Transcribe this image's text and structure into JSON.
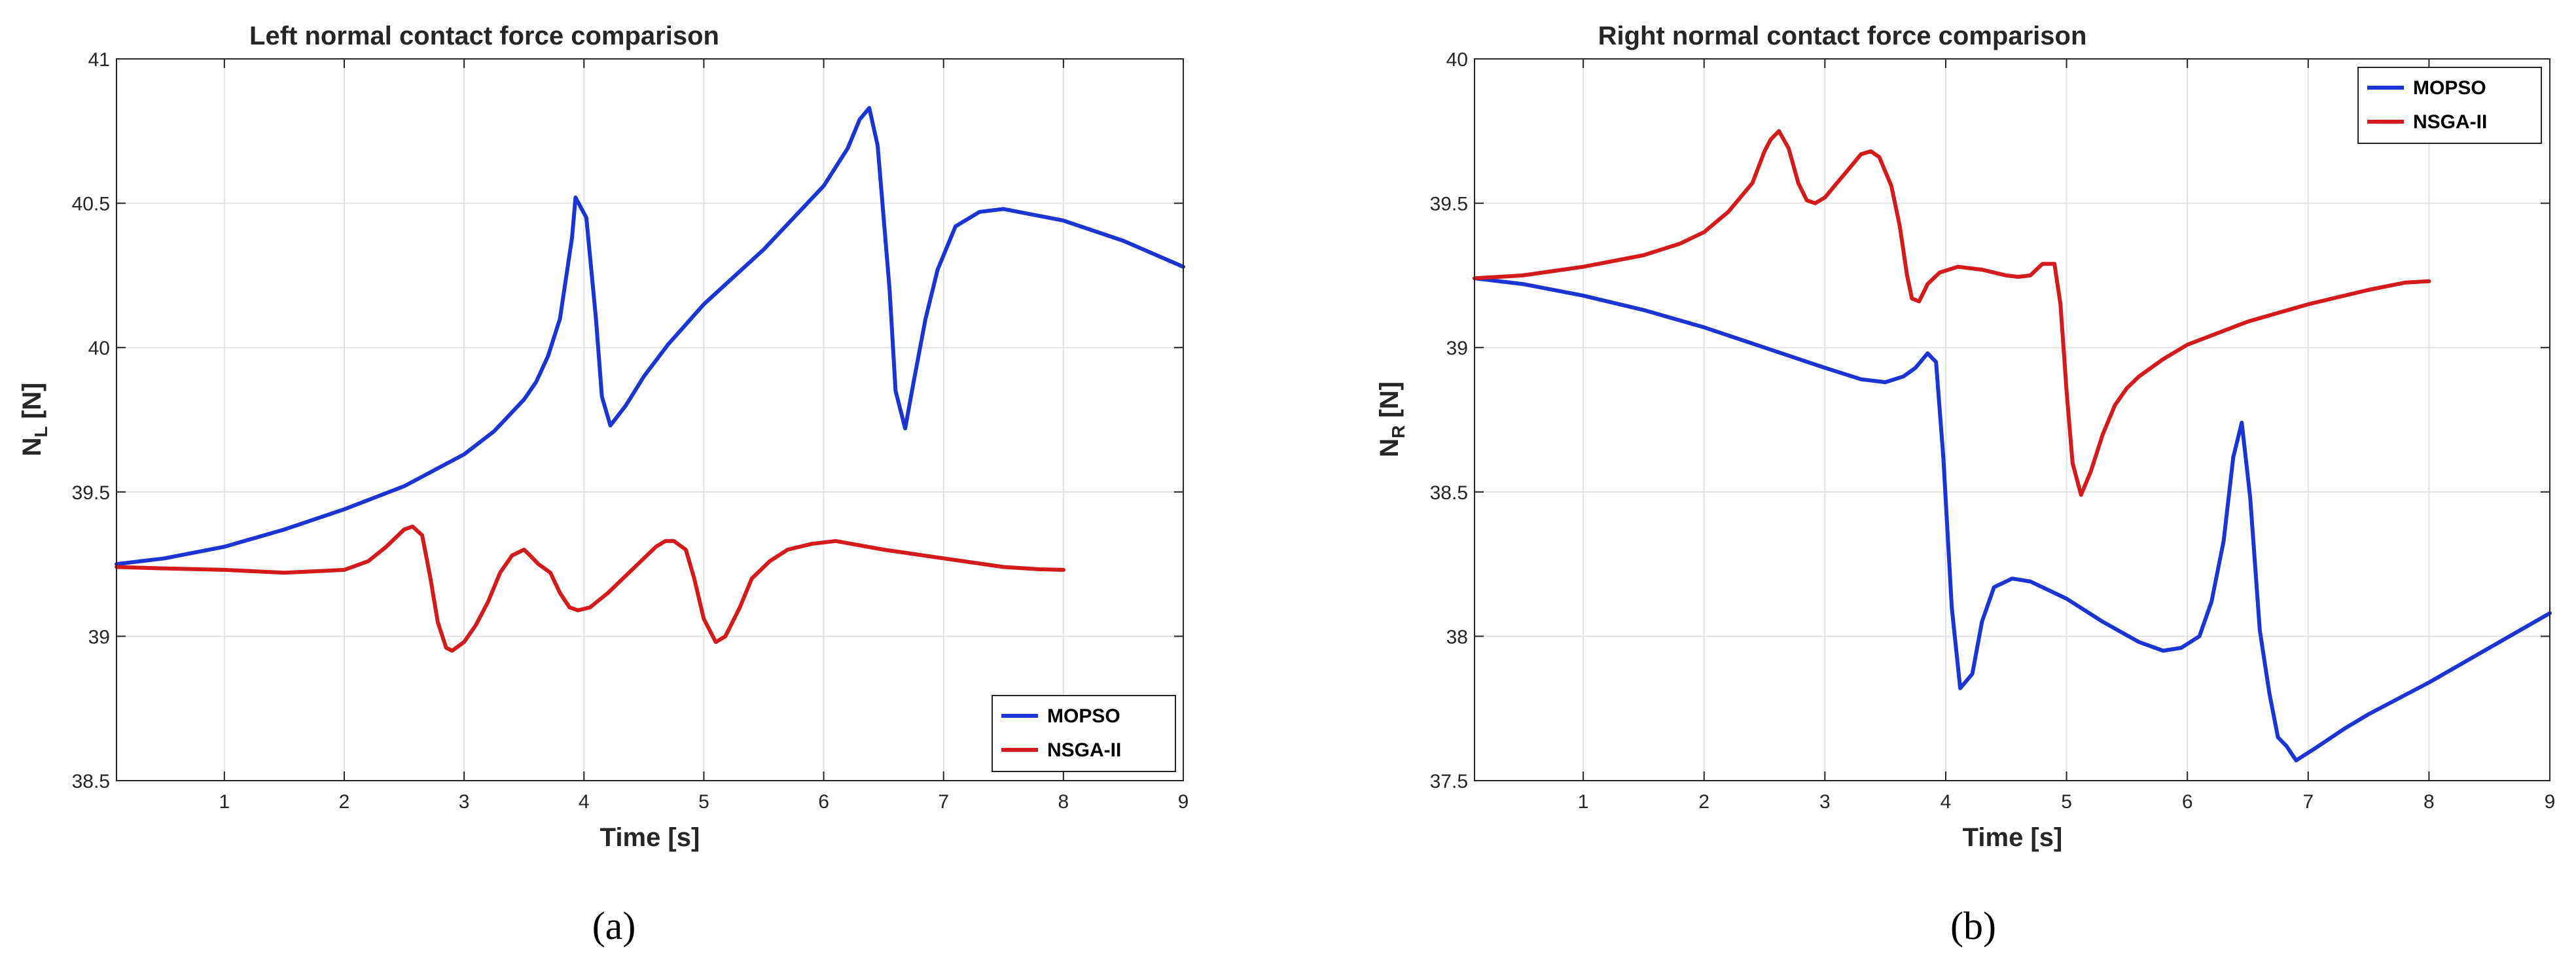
{
  "chart_data": [
    {
      "type": "line",
      "title": "Left normal contact force comparison",
      "xlabel": "Time [s]",
      "ylabel_main": "N",
      "ylabel_sub": "L",
      "ylabel_unit": "[N]",
      "xlim": [
        0.1,
        9
      ],
      "ylim": [
        38.5,
        41
      ],
      "xticks": [
        "1",
        "2",
        "3",
        "4",
        "5",
        "6",
        "7",
        "8",
        "9"
      ],
      "yticks": [
        "38.5",
        "39",
        "39.5",
        "40",
        "40.5",
        "41"
      ],
      "grid": true,
      "legend_position": "bottom-right",
      "caption": "(a)",
      "series": [
        {
          "name": "MOPSO",
          "color": "#1a35d4",
          "points": [
            [
              0.1,
              39.25
            ],
            [
              0.5,
              39.27
            ],
            [
              1.0,
              39.31
            ],
            [
              1.5,
              39.37
            ],
            [
              2.0,
              39.44
            ],
            [
              2.5,
              39.52
            ],
            [
              3.0,
              39.63
            ],
            [
              3.25,
              39.71
            ],
            [
              3.5,
              39.82
            ],
            [
              3.6,
              39.88
            ],
            [
              3.7,
              39.97
            ],
            [
              3.8,
              40.1
            ],
            [
              3.9,
              40.38
            ],
            [
              3.93,
              40.52
            ],
            [
              4.02,
              40.45
            ],
            [
              4.1,
              40.1
            ],
            [
              4.15,
              39.83
            ],
            [
              4.22,
              39.73
            ],
            [
              4.35,
              39.8
            ],
            [
              4.5,
              39.9
            ],
            [
              4.7,
              40.01
            ],
            [
              5.0,
              40.15
            ],
            [
              5.5,
              40.34
            ],
            [
              6.0,
              40.56
            ],
            [
              6.2,
              40.69
            ],
            [
              6.3,
              40.79
            ],
            [
              6.38,
              40.83
            ],
            [
              6.45,
              40.7
            ],
            [
              6.55,
              40.2
            ],
            [
              6.6,
              39.85
            ],
            [
              6.68,
              39.72
            ],
            [
              6.75,
              39.88
            ],
            [
              6.85,
              40.1
            ],
            [
              6.95,
              40.27
            ],
            [
              7.1,
              40.42
            ],
            [
              7.3,
              40.47
            ],
            [
              7.5,
              40.48
            ],
            [
              8.0,
              40.44
            ],
            [
              8.5,
              40.37
            ],
            [
              9.0,
              40.28
            ]
          ]
        },
        {
          "name": "NSGA-II",
          "color": "#d41a1a",
          "points": [
            [
              0.1,
              39.24
            ],
            [
              0.5,
              39.235
            ],
            [
              1.0,
              39.23
            ],
            [
              1.5,
              39.22
            ],
            [
              2.0,
              39.23
            ],
            [
              2.2,
              39.26
            ],
            [
              2.35,
              39.31
            ],
            [
              2.5,
              39.37
            ],
            [
              2.57,
              39.38
            ],
            [
              2.65,
              39.35
            ],
            [
              2.72,
              39.2
            ],
            [
              2.78,
              39.05
            ],
            [
              2.85,
              38.96
            ],
            [
              2.9,
              38.95
            ],
            [
              3.0,
              38.98
            ],
            [
              3.1,
              39.04
            ],
            [
              3.2,
              39.12
            ],
            [
              3.3,
              39.22
            ],
            [
              3.4,
              39.28
            ],
            [
              3.5,
              39.3
            ],
            [
              3.55,
              39.28
            ],
            [
              3.62,
              39.25
            ],
            [
              3.72,
              39.22
            ],
            [
              3.8,
              39.15
            ],
            [
              3.88,
              39.1
            ],
            [
              3.95,
              39.09
            ],
            [
              4.05,
              39.1
            ],
            [
              4.2,
              39.15
            ],
            [
              4.4,
              39.23
            ],
            [
              4.6,
              39.31
            ],
            [
              4.68,
              39.33
            ],
            [
              4.75,
              39.33
            ],
            [
              4.85,
              39.3
            ],
            [
              4.92,
              39.2
            ],
            [
              5.0,
              39.06
            ],
            [
              5.1,
              38.98
            ],
            [
              5.18,
              39.0
            ],
            [
              5.3,
              39.1
            ],
            [
              5.4,
              39.2
            ],
            [
              5.55,
              39.26
            ],
            [
              5.7,
              39.3
            ],
            [
              5.9,
              39.32
            ],
            [
              6.1,
              39.33
            ],
            [
              6.5,
              39.3
            ],
            [
              7.0,
              39.27
            ],
            [
              7.5,
              39.24
            ],
            [
              7.8,
              39.232
            ],
            [
              8.0,
              39.23
            ]
          ]
        }
      ]
    },
    {
      "type": "line",
      "title": "Right normal contact force comparison",
      "xlabel": "Time [s]",
      "ylabel_main": "N",
      "ylabel_sub": "R",
      "ylabel_unit": "[N]",
      "xlim": [
        0.1,
        9
      ],
      "ylim": [
        37.5,
        40
      ],
      "xticks": [
        "1",
        "2",
        "3",
        "4",
        "5",
        "6",
        "7",
        "8",
        "9"
      ],
      "yticks": [
        "37.5",
        "38",
        "38.5",
        "39",
        "39.5",
        "40"
      ],
      "grid": true,
      "legend_position": "top-right",
      "caption": "(b)",
      "series": [
        {
          "name": "MOPSO",
          "color": "#1a35d4",
          "points": [
            [
              0.1,
              39.24
            ],
            [
              0.5,
              39.22
            ],
            [
              1.0,
              39.18
            ],
            [
              1.5,
              39.13
            ],
            [
              2.0,
              39.07
            ],
            [
              2.5,
              39.0
            ],
            [
              3.0,
              38.93
            ],
            [
              3.3,
              38.89
            ],
            [
              3.5,
              38.88
            ],
            [
              3.65,
              38.9
            ],
            [
              3.75,
              38.93
            ],
            [
              3.85,
              38.98
            ],
            [
              3.92,
              38.95
            ],
            [
              3.98,
              38.62
            ],
            [
              4.05,
              38.1
            ],
            [
              4.12,
              37.82
            ],
            [
              4.22,
              37.87
            ],
            [
              4.3,
              38.05
            ],
            [
              4.4,
              38.17
            ],
            [
              4.55,
              38.2
            ],
            [
              4.7,
              38.19
            ],
            [
              5.0,
              38.13
            ],
            [
              5.3,
              38.05
            ],
            [
              5.6,
              37.98
            ],
            [
              5.8,
              37.95
            ],
            [
              5.95,
              37.96
            ],
            [
              6.1,
              38.0
            ],
            [
              6.2,
              38.12
            ],
            [
              6.3,
              38.33
            ],
            [
              6.38,
              38.62
            ],
            [
              6.45,
              38.74
            ],
            [
              6.52,
              38.48
            ],
            [
              6.6,
              38.02
            ],
            [
              6.68,
              37.8
            ],
            [
              6.75,
              37.65
            ],
            [
              6.82,
              37.62
            ],
            [
              6.9,
              37.57
            ],
            [
              7.05,
              37.61
            ],
            [
              7.3,
              37.68
            ],
            [
              7.5,
              37.73
            ],
            [
              8.0,
              37.84
            ],
            [
              8.5,
              37.96
            ],
            [
              9.0,
              38.08
            ]
          ]
        },
        {
          "name": "NSGA-II",
          "color": "#d41a1a",
          "points": [
            [
              0.1,
              39.24
            ],
            [
              0.5,
              39.25
            ],
            [
              1.0,
              39.28
            ],
            [
              1.5,
              39.32
            ],
            [
              1.8,
              39.36
            ],
            [
              2.0,
              39.4
            ],
            [
              2.2,
              39.47
            ],
            [
              2.4,
              39.57
            ],
            [
              2.5,
              39.68
            ],
            [
              2.55,
              39.72
            ],
            [
              2.62,
              39.75
            ],
            [
              2.7,
              39.69
            ],
            [
              2.78,
              39.57
            ],
            [
              2.85,
              39.51
            ],
            [
              2.92,
              39.5
            ],
            [
              3.0,
              39.52
            ],
            [
              3.1,
              39.57
            ],
            [
              3.2,
              39.62
            ],
            [
              3.3,
              39.67
            ],
            [
              3.38,
              39.68
            ],
            [
              3.45,
              39.66
            ],
            [
              3.55,
              39.56
            ],
            [
              3.62,
              39.42
            ],
            [
              3.68,
              39.25
            ],
            [
              3.72,
              39.17
            ],
            [
              3.78,
              39.16
            ],
            [
              3.85,
              39.22
            ],
            [
              3.95,
              39.26
            ],
            [
              4.1,
              39.28
            ],
            [
              4.3,
              39.27
            ],
            [
              4.5,
              39.25
            ],
            [
              4.6,
              39.245
            ],
            [
              4.7,
              39.25
            ],
            [
              4.8,
              39.29
            ],
            [
              4.9,
              39.29
            ],
            [
              4.95,
              39.15
            ],
            [
              5.0,
              38.85
            ],
            [
              5.05,
              38.6
            ],
            [
              5.12,
              38.49
            ],
            [
              5.2,
              38.57
            ],
            [
              5.3,
              38.7
            ],
            [
              5.4,
              38.8
            ],
            [
              5.5,
              38.86
            ],
            [
              5.6,
              38.9
            ],
            [
              5.8,
              38.96
            ],
            [
              6.0,
              39.01
            ],
            [
              6.5,
              39.09
            ],
            [
              7.0,
              39.15
            ],
            [
              7.5,
              39.2
            ],
            [
              7.8,
              39.225
            ],
            [
              8.0,
              39.23
            ]
          ]
        }
      ]
    }
  ]
}
